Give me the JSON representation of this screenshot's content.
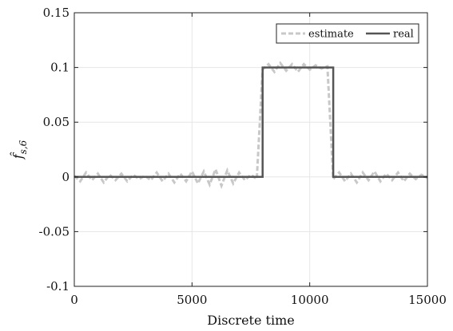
{
  "chart_data": {
    "type": "line",
    "xlabel": "Discrete time",
    "ylabel": "f̂",
    "ylabel_subscript": "s,6",
    "xlim": [
      0,
      15000
    ],
    "ylim": [
      -0.1,
      0.15
    ],
    "xticks": [
      0,
      5000,
      10000,
      15000
    ],
    "xtick_labels": [
      "0",
      "5000",
      "10000",
      "15000"
    ],
    "yticks": [
      -0.1,
      -0.05,
      0,
      0.05,
      0.1,
      0.15
    ],
    "ytick_labels": [
      "-0.1",
      "-0.05",
      "0",
      "0.05",
      "0.1",
      "0.15"
    ],
    "grid": true,
    "legend_position": "top-right",
    "series": [
      {
        "name": "estimate",
        "style": "dashed",
        "color": "#c8c8c8",
        "x": [
          0,
          250,
          500,
          750,
          1000,
          1250,
          1500,
          1750,
          2000,
          2250,
          2500,
          2750,
          3000,
          3250,
          3500,
          3750,
          4000,
          4250,
          4500,
          4750,
          5000,
          5250,
          5500,
          5750,
          6000,
          6250,
          6500,
          6750,
          7000,
          7250,
          7500,
          7750,
          8000,
          8250,
          8500,
          8750,
          9000,
          9250,
          9500,
          9750,
          10000,
          10250,
          10500,
          10750,
          11000,
          11250,
          11500,
          11750,
          12000,
          12250,
          12500,
          12750,
          13000,
          13250,
          13500,
          13750,
          14000,
          14250,
          14500,
          14750,
          15000
        ],
        "y": [
          0.001,
          -0.004,
          0.004,
          -0.003,
          0.003,
          -0.005,
          0.002,
          -0.003,
          0.003,
          -0.004,
          0.002,
          -0.002,
          0.001,
          -0.003,
          0.004,
          -0.004,
          0.003,
          -0.005,
          0.003,
          -0.004,
          0.005,
          -0.006,
          0.005,
          -0.007,
          0.007,
          -0.008,
          0.006,
          -0.006,
          0.004,
          -0.003,
          0.002,
          -0.002,
          0.098,
          0.103,
          0.096,
          0.104,
          0.097,
          0.103,
          0.096,
          0.103,
          0.098,
          0.102,
          0.099,
          0.101,
          -0.002,
          0.004,
          -0.004,
          0.003,
          -0.005,
          0.004,
          -0.003,
          0.005,
          -0.004,
          0.003,
          -0.003,
          0.004,
          -0.004,
          0.003,
          -0.002,
          0.002,
          -0.001
        ]
      },
      {
        "name": "real",
        "style": "solid",
        "color": "#555555",
        "x": [
          0,
          8000,
          8000,
          11000,
          11000,
          15000
        ],
        "y": [
          0,
          0,
          0.1,
          0.1,
          0,
          0
        ]
      }
    ]
  }
}
